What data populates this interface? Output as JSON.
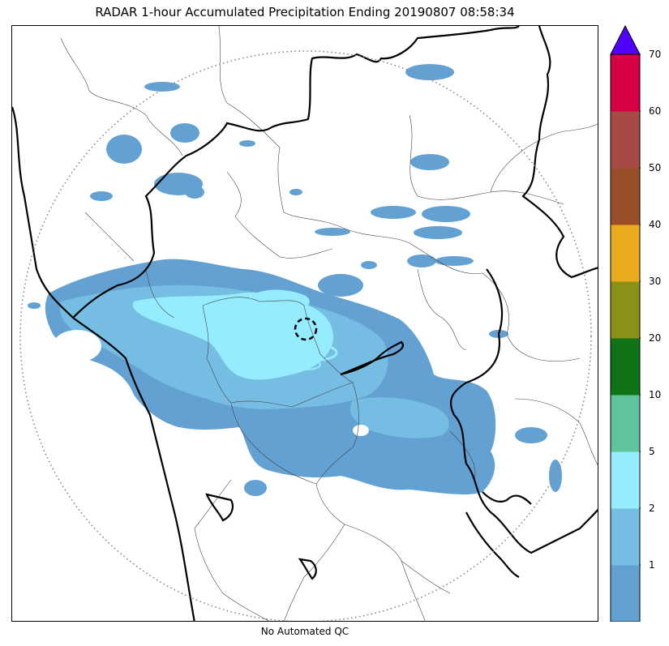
{
  "title": "RADAR 1-hour Accumulated Precipitation Ending 20190807 08:58:34",
  "footer": "No Automated QC",
  "colorbar": {
    "extend": "max",
    "overflow_color": "#5100ff",
    "bins": [
      {
        "color": "#63a1d3"
      },
      {
        "color": "#76bde3"
      },
      {
        "color": "#96ecff"
      },
      {
        "color": "#5fc39b"
      },
      {
        "color": "#0e7417"
      },
      {
        "color": "#8b9116"
      },
      {
        "color": "#e9aa1d"
      },
      {
        "color": "#994d28"
      },
      {
        "color": "#a64a45"
      },
      {
        "color": "#d60044"
      }
    ],
    "tick_labels": [
      "1",
      "2",
      "5",
      "10",
      "20",
      "30",
      "40",
      "50",
      "60",
      "70"
    ]
  },
  "map": {
    "range_ring": "dotted",
    "radar_site_marker": "dashed-circle",
    "colors": {
      "coast_border": "#000000",
      "district_lines": "#444444",
      "ring": "#888888"
    }
  }
}
